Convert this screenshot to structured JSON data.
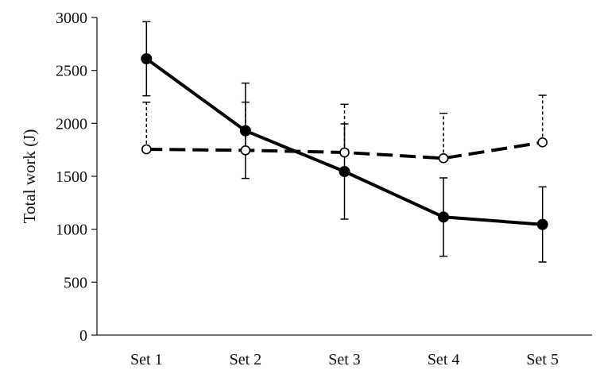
{
  "chart_data": {
    "type": "line",
    "title": "",
    "xlabel": "",
    "ylabel": "Total work (J)",
    "ylim": [
      0,
      3000
    ],
    "yticks": [
      0,
      500,
      1000,
      1500,
      2000,
      2500,
      3000
    ],
    "categories": [
      "Set 1",
      "Set 2",
      "Set 3",
      "Set 4",
      "Set 5"
    ],
    "grid": false,
    "legend": "none",
    "series": [
      {
        "style": "solid",
        "marker": "filled-circle",
        "color": "#000000",
        "values": [
          2610,
          1930,
          1545,
          1115,
          1045
        ],
        "error": [
          350,
          450,
          450,
          370,
          355
        ],
        "error_direction": "both"
      },
      {
        "style": "dashed",
        "marker": "open-circle",
        "color": "#000000",
        "values": [
          1755,
          1745,
          1725,
          1670,
          1820
        ],
        "error": [
          445,
          455,
          455,
          425,
          445
        ],
        "error_direction": "up"
      }
    ]
  }
}
